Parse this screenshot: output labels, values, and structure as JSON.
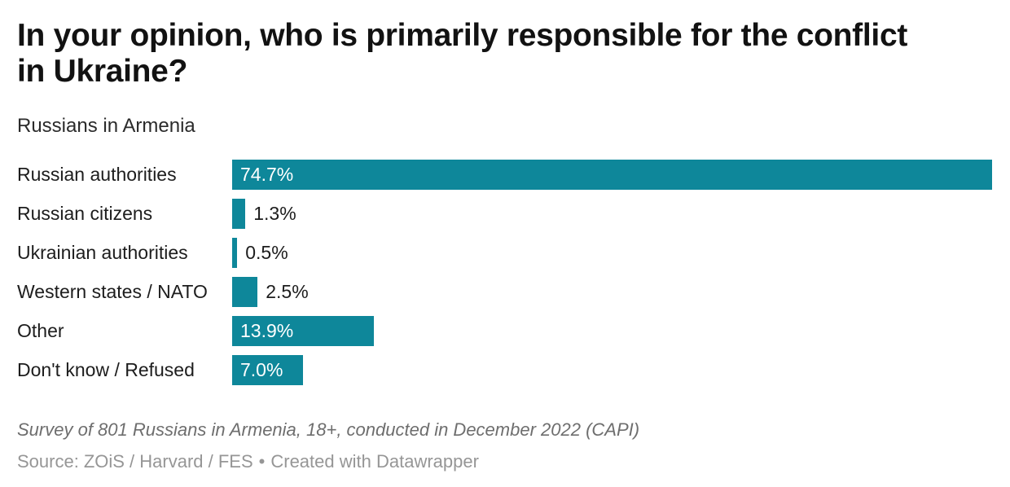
{
  "header": {
    "title_line1": "In your opinion, who is primarily responsible for the conflict",
    "title_line2": "in Ukraine?",
    "subtitle": "Russians in Armenia"
  },
  "chart_data": {
    "type": "bar",
    "orientation": "horizontal",
    "title": "In your opinion, who is primarily responsible for the conflict in Ukraine?",
    "subtitle": "Russians in Armenia",
    "categories": [
      "Russian authorities",
      "Russian citizens",
      "Ukrainian authorities",
      "Western states / NATO",
      "Other",
      "Don't know / Refused"
    ],
    "values": [
      74.7,
      1.3,
      0.5,
      2.5,
      13.9,
      7.0
    ],
    "value_labels": [
      "74.7%",
      "1.3%",
      "0.5%",
      "2.5%",
      "13.9%",
      "7.0%"
    ],
    "unit": "%",
    "xlim": [
      0,
      74.7
    ],
    "bar_color": "#0e879a",
    "value_label_inside_color": "#ffffff",
    "value_label_outside_color": "#1d1d1d",
    "grid": false,
    "legend": false
  },
  "footer": {
    "notes": "Survey of 801 Russians in Armenia, 18+, conducted in December 2022 (CAPI)",
    "source_label": "Source:",
    "source": "ZOiS / Harvard / FES",
    "separator": "•",
    "attribution": "Created with Datawrapper"
  }
}
